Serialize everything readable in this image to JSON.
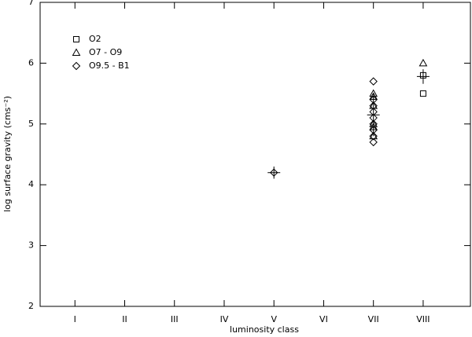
{
  "chart_data": {
    "type": "scatter",
    "x_label": "luminosity class",
    "y_label": "log surface gravity (cms⁻²)",
    "xlim": [
      0.3,
      8.95
    ],
    "ylim": [
      2,
      7
    ],
    "xticks": [
      {
        "value": 1,
        "label": "I"
      },
      {
        "value": 2,
        "label": "II"
      },
      {
        "value": 3,
        "label": "III"
      },
      {
        "value": 4,
        "label": "IV"
      },
      {
        "value": 5,
        "label": "V"
      },
      {
        "value": 6,
        "label": "VI"
      },
      {
        "value": 7,
        "label": "VII"
      },
      {
        "value": 8,
        "label": "VIII"
      }
    ],
    "yticks": [
      2,
      3,
      4,
      5,
      6,
      7
    ],
    "legend": "upper left",
    "series": [
      {
        "name": "O2",
        "marker": "square",
        "color": "#000000",
        "x": [
          8,
          8
        ],
        "values": [
          5.8,
          5.5
        ]
      },
      {
        "name": "O7 - O9",
        "marker": "triangle",
        "color": "#000000",
        "x": [
          7,
          7,
          7,
          7,
          7,
          7,
          8
        ],
        "values": [
          5.5,
          5.45,
          5.3,
          5.0,
          4.95,
          4.8,
          6.0
        ]
      },
      {
        "name": "O9.5 - B1",
        "marker": "diamond",
        "color": "#000000",
        "x": [
          5,
          7,
          7,
          7,
          7,
          7,
          7,
          7,
          7,
          7
        ],
        "values": [
          4.2,
          5.7,
          5.4,
          5.3,
          5.2,
          5.1,
          5.0,
          4.9,
          4.8,
          4.7
        ]
      }
    ],
    "error_bars": {
      "color": "#000000",
      "x": [
        5,
        7,
        8
      ],
      "values": [
        4.2,
        5.15,
        5.78
      ],
      "errors": [
        0.1,
        0.35,
        0.12
      ]
    }
  }
}
